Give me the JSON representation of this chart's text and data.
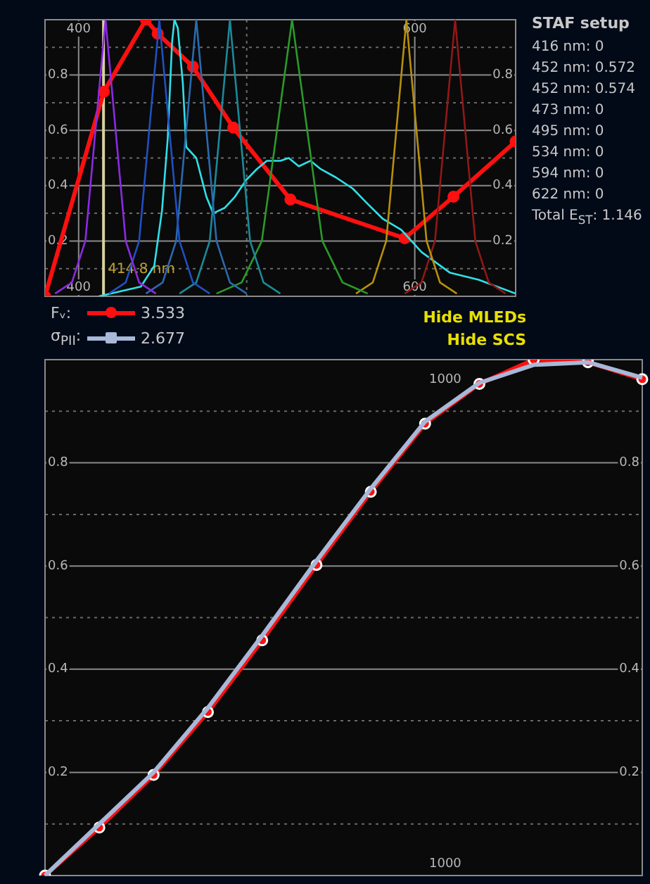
{
  "chart_data": [
    {
      "type": "line",
      "xlim": [
        380,
        660
      ],
      "ylim": [
        0,
        1
      ],
      "xticks": [
        400,
        {
          "value": 500,
          "label": null
        },
        600
      ],
      "x2lim": [
        380,
        660
      ],
      "x2ticks": [
        400,
        600
      ],
      "yticks": [
        {
          "value": 0.1,
          "label": null
        },
        0.2,
        {
          "value": 0.3,
          "label": null
        },
        0.4,
        {
          "value": 0.5,
          "label": null
        },
        0.6,
        {
          "value": 0.7,
          "label": null
        },
        0.8,
        {
          "value": 0.9,
          "label": null
        }
      ],
      "y2lim": [
        0,
        1
      ],
      "y2ticks": [
        0.2,
        0.4,
        0.6,
        0.8
      ],
      "grid": true,
      "legend": "bottom",
      "ref_lines": [
        {
          "axis": "x",
          "value": 414.8,
          "label": "414.8 nm",
          "color": "#d8d0a0"
        }
      ],
      "annotations": [
        "3.533",
        "Hide MLEDs",
        "Hide SCS"
      ],
      "series": [
        {
          "color": "#8a2be2",
          "x": [
            386,
            396,
            404,
            410,
            416,
            422,
            428,
            436,
            446
          ],
          "values": [
            0.01,
            0.05,
            0.2,
            0.6,
            1,
            0.6,
            0.2,
            0.05,
            0.01
          ]
        },
        {
          "color": "#2050c0",
          "x": [
            418,
            428,
            436,
            442,
            448,
            454,
            460,
            468,
            478
          ],
          "values": [
            0.01,
            0.05,
            0.2,
            0.6,
            1,
            0.6,
            0.2,
            0.05,
            0.01
          ]
        },
        {
          "color": "#2a6ab0",
          "x": [
            440,
            450,
            458,
            464,
            470,
            476,
            482,
            490,
            500
          ],
          "values": [
            0.01,
            0.05,
            0.2,
            0.6,
            1,
            0.6,
            0.2,
            0.05,
            0.01
          ]
        },
        {
          "color": "#1a8a9a",
          "x": [
            460,
            470,
            478,
            484,
            490,
            496,
            502,
            510,
            520
          ],
          "values": [
            0.01,
            0.05,
            0.2,
            0.6,
            1,
            0.6,
            0.2,
            0.05,
            0.01
          ]
        },
        {
          "color": "#2a9a2a",
          "x": [
            482,
            497,
            509,
            518,
            527,
            536,
            545,
            557,
            572
          ],
          "values": [
            0.01,
            0.05,
            0.2,
            0.6,
            1,
            0.6,
            0.2,
            0.05,
            0.01
          ]
        },
        {
          "color": "#b8900a",
          "x": [
            565,
            575,
            583,
            589,
            595,
            601,
            607,
            615,
            625
          ],
          "values": [
            0.01,
            0.05,
            0.2,
            0.6,
            1,
            0.6,
            0.2,
            0.05,
            0.01
          ]
        },
        {
          "color": "#901818",
          "x": [
            594,
            604,
            612,
            618,
            624,
            630,
            636,
            644,
            654
          ],
          "values": [
            0.01,
            0.05,
            0.2,
            0.6,
            1,
            0.6,
            0.2,
            0.05,
            0.01
          ]
        },
        {
          "color": "#30e0e8",
          "x": [
            412,
            437,
            445,
            449.6,
            453,
            455.6,
            457,
            459,
            462,
            464,
            470,
            476,
            480,
            487,
            493,
            499.6,
            506,
            512,
            520,
            525,
            531,
            538,
            544,
            553,
            563,
            571,
            581,
            592,
            604,
            621,
            638,
            660
          ],
          "values": [
            0,
            0.035,
            0.11,
            0.31,
            0.57,
            0.92,
            1,
            0.97,
            0.77,
            0.54,
            0.5,
            0.36,
            0.3,
            0.32,
            0.36,
            0.42,
            0.46,
            0.49,
            0.49,
            0.5,
            0.47,
            0.49,
            0.46,
            0.43,
            0.39,
            0.34,
            0.28,
            0.24,
            0.16,
            0.085,
            0.06,
            0.01
          ]
        },
        {
          "name": "Fᵥ:",
          "color": "#ff1010",
          "marker": "circle",
          "x": [
            380,
            415,
            440,
            447,
            468,
            492,
            526,
            594,
            623,
            660
          ],
          "values": [
            0,
            0.74,
            1,
            0.95,
            0.83,
            0.61,
            0.35,
            0.21,
            0.36,
            0.56
          ]
        }
      ]
    },
    {
      "type": "line",
      "ylim": [
        0,
        1
      ],
      "yticks": [
        {
          "value": 0.1,
          "label": null
        },
        0.2,
        {
          "value": 0.3,
          "label": null
        },
        0.4,
        {
          "value": 0.5,
          "label": null
        },
        0.6,
        {
          "value": 0.7,
          "label": null
        },
        0.8,
        {
          "value": 0.9,
          "label": null
        }
      ],
      "y2lim": [
        0,
        1
      ],
      "y2ticks": [
        0.2,
        0.4,
        0.6,
        0.8
      ],
      "grid": "y",
      "legend": "top",
      "annotations": [
        "2.677",
        "1000",
        "1000"
      ],
      "categories": [
        null,
        null,
        null,
        null,
        null,
        null,
        null,
        null,
        null,
        null,
        null,
        null
      ],
      "series": [
        {
          "name": "σ$_{PII}$:",
          "color": "#a8b8d8",
          "values": [
            0,
            0.1,
            0.2,
            0.325,
            0.465,
            0.61,
            0.75,
            0.88,
            0.955,
            0.99,
            0.995,
            0.965
          ]
        },
        {
          "color": "#ff1010",
          "marker": "circle",
          "values": [
            0,
            0.093,
            0.195,
            0.317,
            0.456,
            0.602,
            0.744,
            0.876,
            0.953,
            1,
            0.995,
            0.962
          ]
        }
      ]
    },
    {
      "type": "other",
      "title": "STAF setup",
      "annotations": [
        "416 nm: 0",
        "452 nm: 0.572",
        "452 nm: 0.574",
        "473 nm: 0",
        "495 nm: 0",
        "534 nm: 0",
        "594 nm: 0",
        "622 nm: 0",
        "Total E$_{ST}$: 1.146"
      ]
    }
  ]
}
